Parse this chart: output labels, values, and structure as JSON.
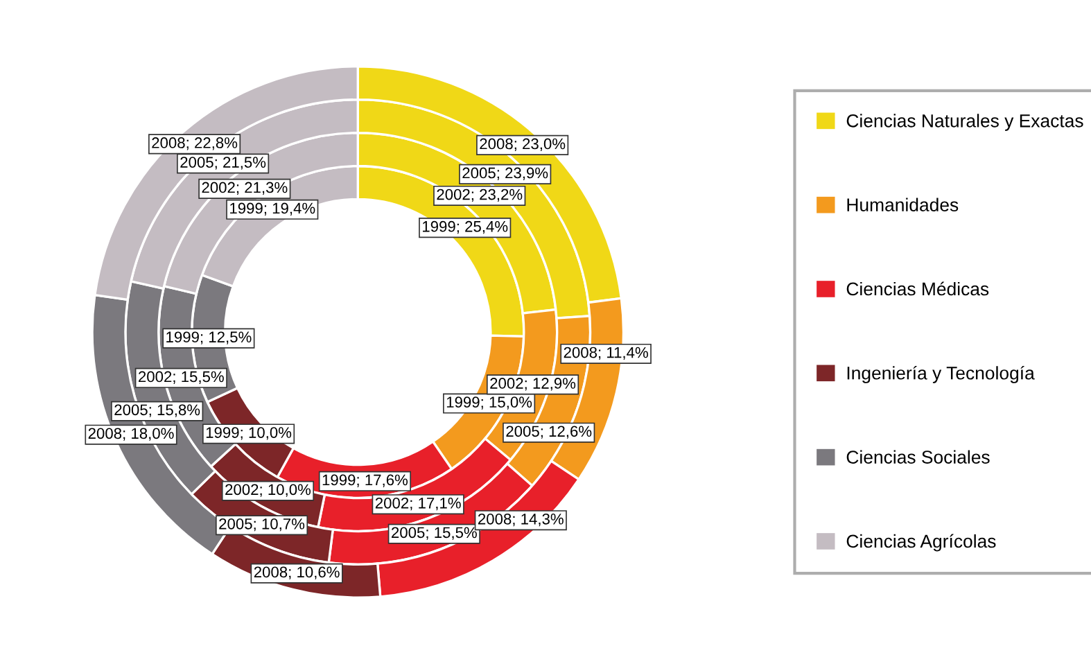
{
  "chart_data": {
    "type": "donut",
    "categories": [
      "Ciencias Naturales y Exactas",
      "Humanidades",
      "Ciencias Médicas",
      "Ingeniería y Tecnología",
      "Ciencias Sociales",
      "Ciencias Agrícolas"
    ],
    "colors": [
      "#f0d817",
      "#f39a1e",
      "#e8202a",
      "#7d2628",
      "#7b797e",
      "#c4bcc2"
    ],
    "series": [
      {
        "values": [
          25.4,
          15.0,
          17.6,
          10.0,
          12.5,
          19.4
        ],
        "value_labels": [
          "1999; 25,4%",
          "1999; 15,0%",
          "1999; 17,6%",
          "1999; 10,0%",
          "1999; 12,5%",
          "1999; 19,4%"
        ]
      },
      {
        "values": [
          23.2,
          12.9,
          17.1,
          10.0,
          15.5,
          21.3
        ],
        "value_labels": [
          "2002; 23,2%",
          "2002; 12,9%",
          "2002; 17,1%",
          "2002; 10,0%",
          "2002; 15,5%",
          "2002; 21,3%"
        ]
      },
      {
        "values": [
          23.9,
          12.6,
          15.5,
          10.7,
          15.8,
          21.5
        ],
        "value_labels": [
          "2005; 23,9%",
          "2005; 12,6%",
          "2005; 15,5%",
          "2005; 10,7%",
          "2005; 15,8%",
          "2005; 21,5%"
        ]
      },
      {
        "values": [
          23.0,
          11.4,
          14.3,
          10.6,
          18.0,
          22.8
        ],
        "value_labels": [
          "2008; 23,0%",
          "2008; 11,4%",
          "2008; 14,3%",
          "2008; 10,6%",
          "2008; 18,0%",
          "2008; 22,8%"
        ]
      }
    ],
    "legend": "right"
  }
}
